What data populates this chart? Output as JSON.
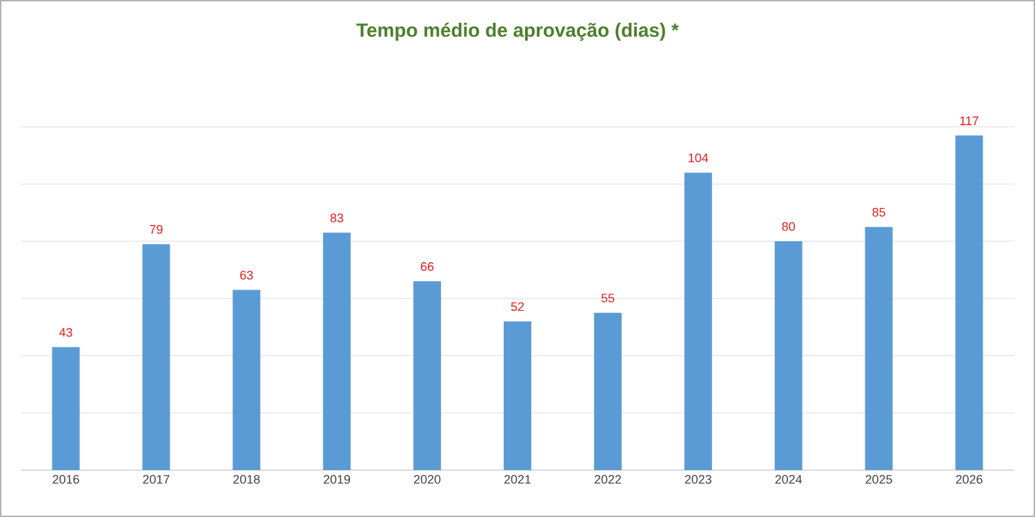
{
  "chart_data": {
    "type": "bar",
    "title": "Tempo médio de aprovação (dias) *",
    "categories": [
      "2016",
      "2017",
      "2018",
      "2019",
      "2020",
      "2021",
      "2022",
      "2023",
      "2024",
      "2025",
      "2026"
    ],
    "values": [
      43,
      79,
      63,
      83,
      66,
      52,
      55,
      104,
      80,
      85,
      117
    ],
    "color": "#5b9bd5",
    "ylim": [
      0,
      120
    ],
    "yticks": [
      0,
      20,
      40,
      60,
      80,
      100,
      120
    ],
    "grid": "y",
    "tick_labels": "x",
    "data_labels": true
  }
}
